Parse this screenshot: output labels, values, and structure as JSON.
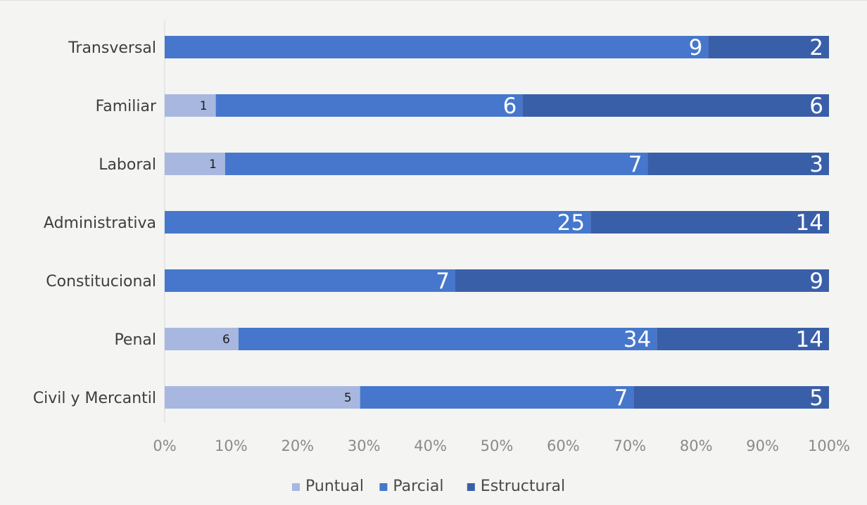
{
  "chart_data": {
    "type": "bar",
    "orientation": "horizontal",
    "stacked": "percent",
    "categories": [
      "Transversal",
      "Familiar",
      "Laboral",
      "Administrativa",
      "Constitucional",
      "Penal",
      "Civil y Mercantil"
    ],
    "series": [
      {
        "name": "Puntual",
        "values": [
          0,
          1,
          1,
          0,
          0,
          6,
          5
        ],
        "color": "#a7b7df"
      },
      {
        "name": "Parcial",
        "values": [
          9,
          6,
          7,
          25,
          7,
          34,
          7
        ],
        "color": "#4677cc"
      },
      {
        "name": "Estructural",
        "values": [
          2,
          6,
          3,
          14,
          9,
          14,
          5
        ],
        "color": "#3a5fa9"
      }
    ],
    "xticks": [
      "0%",
      "10%",
      "20%",
      "30%",
      "40%",
      "50%",
      "60%",
      "70%",
      "80%",
      "90%",
      "100%"
    ],
    "xlim": [
      0,
      100
    ],
    "legend_position": "bottom",
    "grid": false
  }
}
